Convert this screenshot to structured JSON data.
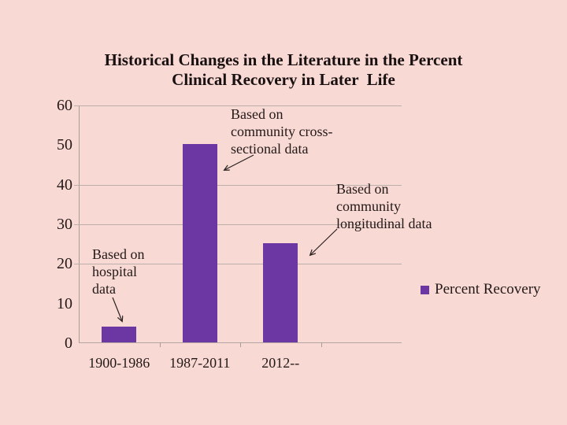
{
  "chart_data": {
    "type": "bar",
    "title": "Historical Changes in the Literature in the Percent\nClinical Recovery in Later  Life",
    "categories": [
      "1900-1986",
      "1987-2011",
      "2012--"
    ],
    "series": [
      {
        "name": "Percent Recovery",
        "values": [
          4,
          50,
          25
        ]
      }
    ],
    "xlabel": "",
    "ylabel": "",
    "ylim": [
      0,
      60
    ],
    "yticks": [
      0,
      10,
      20,
      30,
      40,
      50,
      60
    ],
    "gridline_values": [
      20,
      30,
      40,
      60
    ],
    "legend": {
      "label": "Percent Recovery",
      "position": "right"
    },
    "colors": {
      "background": "#F8D9D3",
      "bar": "#6C37A3",
      "grid": "#BCAEAA",
      "axis": "#A89B98",
      "text": "#231919",
      "arrow": "#2A2020"
    },
    "annotations": [
      {
        "text": "Based on\ncommunity cross-\nsectional data",
        "points_to": "1987-2011"
      },
      {
        "text": "Based on\ncommunity\nlongitudinal data",
        "points_to": "2012--"
      },
      {
        "text": "Based on\nhospital\ndata",
        "points_to": "1900-1986"
      }
    ]
  }
}
